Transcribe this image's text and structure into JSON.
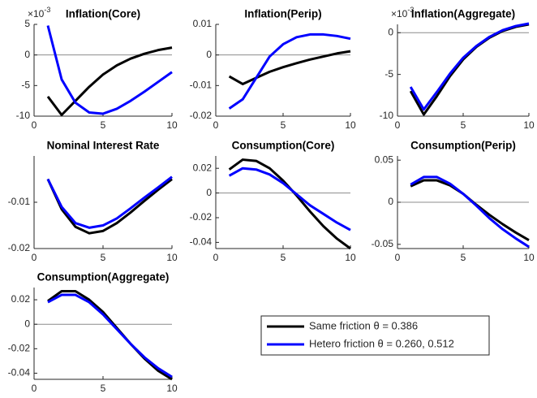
{
  "chart_data": [
    {
      "type": "line",
      "title": "Inflation(Core)",
      "y_multiplier": "×10",
      "y_exponent": "-3",
      "x": [
        1,
        2,
        3,
        4,
        5,
        6,
        7,
        8,
        9,
        10
      ],
      "xlim": [
        0,
        10
      ],
      "xticks": [
        0,
        5,
        10
      ],
      "ylim": [
        -10,
        5
      ],
      "yticks": [
        -10,
        -5,
        0,
        5
      ],
      "series": [
        {
          "name": "Same friction θ = 0.386",
          "color": "#000000",
          "values": [
            -6.8,
            -9.8,
            -7.5,
            -5.2,
            -3.2,
            -1.7,
            -0.6,
            0.2,
            0.8,
            1.2
          ]
        },
        {
          "name": "Hetero friction θ = 0.260, 0.512",
          "color": "#0000ff",
          "values": [
            4.8,
            -4,
            -7.8,
            -9.4,
            -9.6,
            -8.8,
            -7.5,
            -6,
            -4.4,
            -2.8
          ]
        }
      ]
    },
    {
      "type": "line",
      "title": "Inflation(Perip)",
      "x": [
        1,
        2,
        3,
        4,
        5,
        6,
        7,
        8,
        9,
        10
      ],
      "xlim": [
        0,
        10
      ],
      "xticks": [
        0,
        5,
        10
      ],
      "ylim": [
        -0.02,
        0.01
      ],
      "yticks": [
        -0.02,
        -0.01,
        0,
        0.01
      ],
      "series": [
        {
          "name": "Same friction θ = 0.386",
          "color": "#000000",
          "values": [
            -0.007,
            -0.0095,
            -0.0075,
            -0.0055,
            -0.004,
            -0.0027,
            -0.0015,
            -0.0005,
            0.0005,
            0.0012
          ]
        },
        {
          "name": "Hetero friction θ = 0.260, 0.512",
          "color": "#0000ff",
          "values": [
            -0.0175,
            -0.0145,
            -0.0075,
            -0.0005,
            0.0035,
            0.0058,
            0.0067,
            0.0067,
            0.0062,
            0.0053
          ]
        }
      ]
    },
    {
      "type": "line",
      "title": "Inflation(Aggregate)",
      "y_multiplier": "×10",
      "y_exponent": "-3",
      "x": [
        1,
        2,
        3,
        4,
        5,
        6,
        7,
        8,
        9,
        10
      ],
      "xlim": [
        0,
        10
      ],
      "xticks": [
        0,
        5,
        10
      ],
      "ylim": [
        -10,
        1
      ],
      "yticks": [
        -10,
        -5,
        0
      ],
      "series": [
        {
          "name": "Same friction θ = 0.386",
          "color": "#000000",
          "values": [
            -7,
            -9.8,
            -7.6,
            -5.2,
            -3.2,
            -1.7,
            -0.6,
            0.2,
            0.7,
            1.0
          ]
        },
        {
          "name": "Hetero friction θ = 0.260, 0.512",
          "color": "#0000ff",
          "values": [
            -6.5,
            -9.2,
            -7.1,
            -4.9,
            -3.0,
            -1.6,
            -0.5,
            0.3,
            0.8,
            1.1
          ]
        }
      ]
    },
    {
      "type": "line",
      "title": "Nominal Interest Rate",
      "x": [
        1,
        2,
        3,
        4,
        5,
        6,
        7,
        8,
        9,
        10
      ],
      "xlim": [
        0,
        10
      ],
      "xticks": [
        0,
        5,
        10
      ],
      "ylim": [
        -0.02,
        0
      ],
      "yticks": [
        -0.02,
        -0.01
      ],
      "series": [
        {
          "name": "Same friction θ = 0.386",
          "color": "#000000",
          "values": [
            -0.005,
            -0.0115,
            -0.0153,
            -0.0167,
            -0.0162,
            -0.0145,
            -0.0122,
            -0.0097,
            -0.0073,
            -0.005
          ]
        },
        {
          "name": "Hetero friction θ = 0.260, 0.512",
          "color": "#0000ff",
          "values": [
            -0.005,
            -0.011,
            -0.0145,
            -0.0155,
            -0.015,
            -0.0135,
            -0.0113,
            -0.009,
            -0.0068,
            -0.0045
          ]
        }
      ]
    },
    {
      "type": "line",
      "title": "Consumption(Core)",
      "x": [
        1,
        2,
        3,
        4,
        5,
        6,
        7,
        8,
        9,
        10
      ],
      "xlim": [
        0,
        10
      ],
      "xticks": [
        0,
        5,
        10
      ],
      "ylim": [
        -0.045,
        0.03
      ],
      "yticks": [
        -0.04,
        -0.02,
        0,
        0.02
      ],
      "series": [
        {
          "name": "Same friction θ = 0.386",
          "color": "#000000",
          "values": [
            0.019,
            0.027,
            0.026,
            0.02,
            0.01,
            -0.002,
            -0.015,
            -0.027,
            -0.037,
            -0.045
          ]
        },
        {
          "name": "Hetero friction θ = 0.260, 0.512",
          "color": "#0000ff",
          "values": [
            0.014,
            0.02,
            0.019,
            0.015,
            0.008,
            -0.001,
            -0.01,
            -0.017,
            -0.024,
            -0.03
          ]
        }
      ]
    },
    {
      "type": "line",
      "title": "Consumption(Perip)",
      "x": [
        1,
        2,
        3,
        4,
        5,
        6,
        7,
        8,
        9,
        10
      ],
      "xlim": [
        0,
        10
      ],
      "xticks": [
        0,
        5,
        10
      ],
      "ylim": [
        -0.055,
        0.055
      ],
      "yticks": [
        -0.05,
        0,
        0.05
      ],
      "series": [
        {
          "name": "Same friction θ = 0.386",
          "color": "#000000",
          "values": [
            0.019,
            0.026,
            0.026,
            0.02,
            0.01,
            -0.003,
            -0.015,
            -0.026,
            -0.036,
            -0.045
          ]
        },
        {
          "name": "Hetero friction θ = 0.260, 0.512",
          "color": "#0000ff",
          "values": [
            0.021,
            0.03,
            0.03,
            0.022,
            0.01,
            -0.004,
            -0.019,
            -0.032,
            -0.043,
            -0.053
          ]
        }
      ]
    },
    {
      "type": "line",
      "title": "Consumption(Aggregate)",
      "x": [
        1,
        2,
        3,
        4,
        5,
        6,
        7,
        8,
        9,
        10
      ],
      "xlim": [
        0,
        10
      ],
      "xticks": [
        0,
        5,
        10
      ],
      "ylim": [
        -0.045,
        0.03
      ],
      "yticks": [
        -0.04,
        -0.02,
        0,
        0.02
      ],
      "series": [
        {
          "name": "Same friction θ = 0.386",
          "color": "#000000",
          "values": [
            0.019,
            0.027,
            0.027,
            0.02,
            0.01,
            -0.003,
            -0.016,
            -0.028,
            -0.038,
            -0.045
          ]
        },
        {
          "name": "Hetero friction θ = 0.260, 0.512",
          "color": "#0000ff",
          "values": [
            0.018,
            0.024,
            0.024,
            0.018,
            0.008,
            -0.004,
            -0.016,
            -0.027,
            -0.036,
            -0.043
          ]
        }
      ]
    }
  ]
}
